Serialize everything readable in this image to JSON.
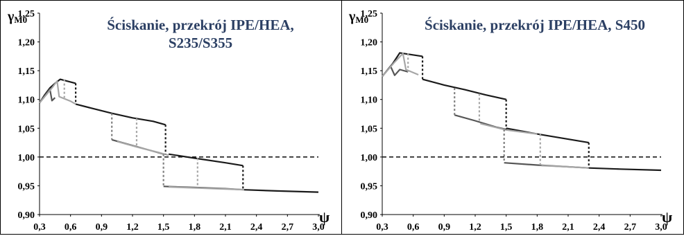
{
  "chart_data": [
    {
      "type": "line",
      "title": "Ściskanie, przekrój IPE/HEA,",
      "subtitle": "S235/S355",
      "ylabel_symbol": "γ",
      "ylabel_subscript": "M0",
      "xlabel": "ψ",
      "xlim": [
        0.3,
        3.0
      ],
      "ylim": [
        0.9,
        1.25
      ],
      "x_ticks": [
        "0,3",
        "0,6",
        "0,9",
        "1,2",
        "1,5",
        "1,8",
        "2,1",
        "2,4",
        "2,7",
        "3,0"
      ],
      "y_ticks": [
        "0,90",
        "0,95",
        "1,00",
        "1,05",
        "1,10",
        "1,15",
        "1,20",
        "1,25"
      ],
      "reference_line": {
        "y": 1.0,
        "style": "dashed"
      },
      "series": [
        {
          "color": "#1a1a1a",
          "points": [
            [
              0.3,
              1.094
            ],
            [
              0.35,
              1.108
            ],
            [
              0.4,
              1.12
            ],
            [
              0.45,
              1.128
            ],
            [
              0.5,
              1.135
            ],
            [
              0.65,
              1.128
            ]
          ]
        },
        {
          "color": "#1a1a1a",
          "points": [
            [
              0.65,
              1.092
            ],
            [
              0.8,
              1.085
            ],
            [
              1.0,
              1.076
            ],
            [
              1.2,
              1.068
            ],
            [
              1.4,
              1.062
            ],
            [
              1.52,
              1.056
            ]
          ]
        },
        {
          "color": "#1a1a1a",
          "points": [
            [
              1.55,
              1.005
            ],
            [
              1.8,
              0.998
            ],
            [
              2.1,
              0.99
            ],
            [
              2.27,
              0.985
            ]
          ]
        },
        {
          "color": "#1a1a1a",
          "points": [
            [
              2.28,
              0.943
            ],
            [
              2.6,
              0.941
            ],
            [
              3.0,
              0.939
            ]
          ]
        },
        {
          "color": "#555555",
          "points": [
            [
              0.3,
              1.094
            ],
            [
              0.4,
              1.118
            ],
            [
              0.42,
              1.098
            ],
            [
              0.45,
              1.103
            ]
          ]
        },
        {
          "color": "#555555",
          "points": [
            [
              1.0,
              1.03
            ],
            [
              1.2,
              1.02
            ],
            [
              1.4,
              1.01
            ],
            [
              1.5,
              1.005
            ]
          ]
        },
        {
          "color": "#555555",
          "points": [
            [
              1.5,
              0.949
            ],
            [
              1.8,
              0.947
            ],
            [
              2.1,
              0.945
            ],
            [
              2.28,
              0.943
            ]
          ]
        },
        {
          "color": "#a6a6a6",
          "points": [
            [
              0.3,
              1.094
            ],
            [
              0.42,
              1.12
            ],
            [
              0.47,
              1.132
            ],
            [
              0.49,
              1.105
            ],
            [
              0.6,
              1.097
            ],
            [
              0.65,
              1.092
            ]
          ]
        },
        {
          "color": "#a6a6a6",
          "points": [
            [
              1.05,
              1.027
            ],
            [
              1.25,
              1.017
            ],
            [
              1.45,
              1.008
            ],
            [
              1.55,
              1.003
            ]
          ]
        },
        {
          "color": "#a6a6a6",
          "points": [
            [
              1.55,
              0.948
            ],
            [
              1.85,
              0.946
            ],
            [
              2.15,
              0.944
            ],
            [
              2.28,
              0.943
            ]
          ]
        }
      ],
      "drops": [
        {
          "x": 0.54,
          "y_top": 1.135,
          "y_bottom": 1.103,
          "color": "#a6a6a6"
        },
        {
          "x": 0.65,
          "y_top": 1.128,
          "y_bottom": 1.092,
          "color": "#1a1a1a"
        },
        {
          "x": 1.0,
          "y_top": 1.076,
          "y_bottom": 1.03,
          "color": "#808080"
        },
        {
          "x": 1.24,
          "y_top": 1.067,
          "y_bottom": 1.02,
          "color": "#a6a6a6"
        },
        {
          "x": 1.52,
          "y_top": 1.056,
          "y_bottom": 1.005,
          "color": "#1a1a1a"
        },
        {
          "x": 1.5,
          "y_top": 1.005,
          "y_bottom": 0.949,
          "color": "#808080"
        },
        {
          "x": 1.83,
          "y_top": 0.998,
          "y_bottom": 0.947,
          "color": "#a6a6a6"
        },
        {
          "x": 2.27,
          "y_top": 0.985,
          "y_bottom": 0.943,
          "color": "#1a1a1a"
        }
      ]
    },
    {
      "type": "line",
      "title": "Ściskanie, przekrój IPE/HEA, S450",
      "subtitle": "",
      "ylabel_symbol": "γ",
      "ylabel_subscript": "M0",
      "xlabel": "ψ",
      "xlim": [
        0.3,
        3.0
      ],
      "ylim": [
        0.9,
        1.25
      ],
      "x_ticks": [
        "0,3",
        "0,6",
        "0,9",
        "1,2",
        "1,5",
        "1,8",
        "2,1",
        "2,4",
        "2,7",
        "3,0"
      ],
      "y_ticks": [
        "0,90",
        "0,95",
        "1,00",
        "1,05",
        "1,10",
        "1,15",
        "1,20",
        "1,25"
      ],
      "reference_line": {
        "y": 1.0,
        "style": "dashed"
      },
      "series": [
        {
          "color": "#1a1a1a",
          "points": [
            [
              0.3,
              1.14
            ],
            [
              0.4,
              1.162
            ],
            [
              0.47,
              1.181
            ],
            [
              0.69,
              1.175
            ]
          ]
        },
        {
          "color": "#1a1a1a",
          "points": [
            [
              0.69,
              1.135
            ],
            [
              0.9,
              1.125
            ],
            [
              1.1,
              1.117
            ],
            [
              1.3,
              1.108
            ],
            [
              1.5,
              1.1
            ]
          ]
        },
        {
          "color": "#1a1a1a",
          "points": [
            [
              1.5,
              1.05
            ],
            [
              1.8,
              1.04
            ],
            [
              2.1,
              1.031
            ],
            [
              2.3,
              1.025
            ]
          ]
        },
        {
          "color": "#1a1a1a",
          "points": [
            [
              2.3,
              0.981
            ],
            [
              2.6,
              0.979
            ],
            [
              3.0,
              0.977
            ]
          ]
        },
        {
          "color": "#555555",
          "points": [
            [
              0.3,
              1.14
            ],
            [
              0.38,
              1.158
            ],
            [
              0.42,
              1.142
            ],
            [
              0.47,
              1.152
            ],
            [
              0.55,
              1.148
            ]
          ]
        },
        {
          "color": "#555555",
          "points": [
            [
              1.0,
              1.073
            ],
            [
              1.2,
              1.063
            ],
            [
              1.4,
              1.052
            ],
            [
              1.5,
              1.048
            ]
          ]
        },
        {
          "color": "#555555",
          "points": [
            [
              1.48,
              0.99
            ],
            [
              1.8,
              0.986
            ],
            [
              2.1,
              0.983
            ],
            [
              2.3,
              0.981
            ]
          ]
        },
        {
          "color": "#a6a6a6",
          "points": [
            [
              0.3,
              1.14
            ],
            [
              0.42,
              1.165
            ],
            [
              0.5,
              1.18
            ],
            [
              0.53,
              1.152
            ],
            [
              0.65,
              1.143
            ]
          ]
        },
        {
          "color": "#a6a6a6",
          "points": [
            [
              1.25,
              1.058
            ],
            [
              1.5,
              1.047
            ],
            [
              1.8,
              1.04
            ]
          ]
        },
        {
          "color": "#a6a6a6",
          "points": [
            [
              1.84,
              0.985
            ],
            [
              2.1,
              0.983
            ],
            [
              2.3,
              0.981
            ]
          ]
        }
      ],
      "drops": [
        {
          "x": 0.55,
          "y_top": 1.18,
          "y_bottom": 1.148,
          "color": "#a6a6a6"
        },
        {
          "x": 0.69,
          "y_top": 1.175,
          "y_bottom": 1.135,
          "color": "#1a1a1a"
        },
        {
          "x": 1.0,
          "y_top": 1.12,
          "y_bottom": 1.073,
          "color": "#808080"
        },
        {
          "x": 1.24,
          "y_top": 1.11,
          "y_bottom": 1.06,
          "color": "#a6a6a6"
        },
        {
          "x": 1.5,
          "y_top": 1.1,
          "y_bottom": 1.048,
          "color": "#1a1a1a"
        },
        {
          "x": 1.48,
          "y_top": 1.048,
          "y_bottom": 0.99,
          "color": "#808080"
        },
        {
          "x": 1.83,
          "y_top": 1.04,
          "y_bottom": 0.985,
          "color": "#a6a6a6"
        },
        {
          "x": 2.3,
          "y_top": 1.025,
          "y_bottom": 0.981,
          "color": "#1a1a1a"
        }
      ]
    }
  ]
}
